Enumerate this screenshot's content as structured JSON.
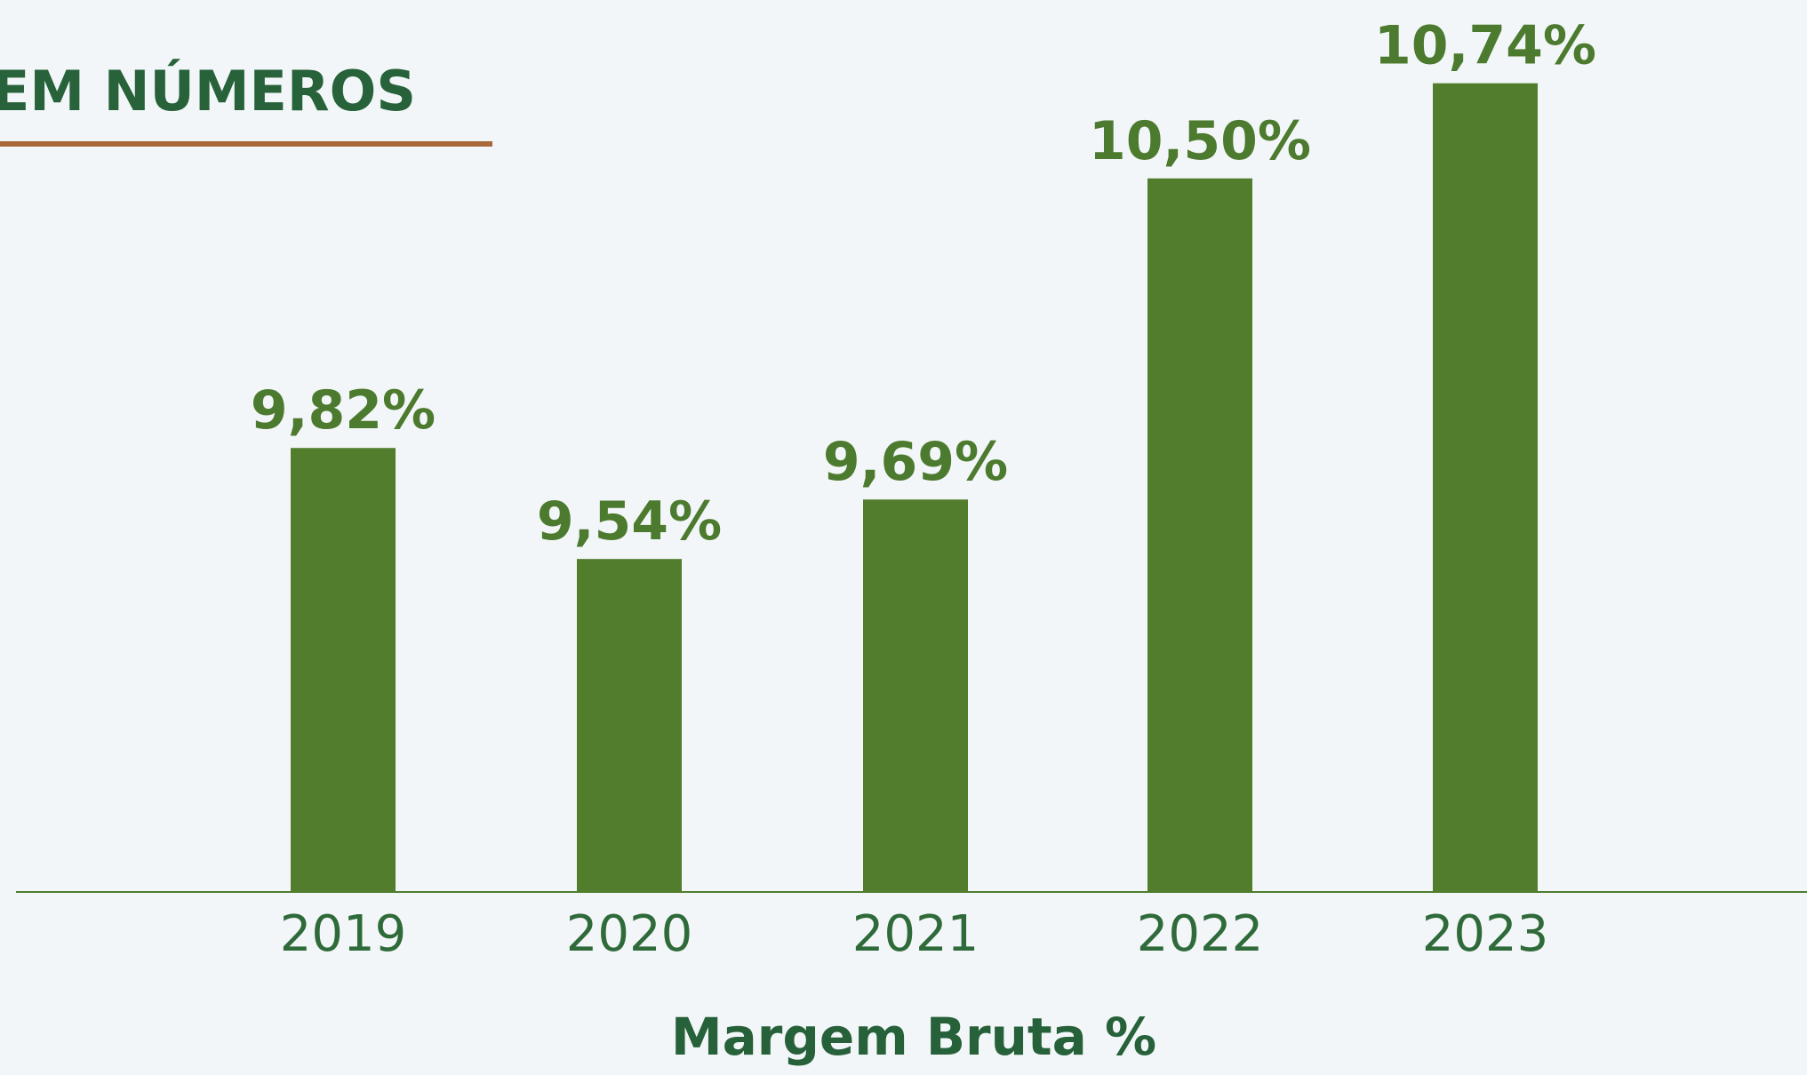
{
  "chart_data": {
    "type": "bar",
    "title": "EM NÚMEROS",
    "x_label": "Margem Bruta %",
    "categories": [
      "2019",
      "2020",
      "2021",
      "2022",
      "2023"
    ],
    "values": [
      9.82,
      9.54,
      9.69,
      10.5,
      10.74
    ],
    "value_labels": [
      "9,82%",
      "9,54%",
      "9,69%",
      "10,50%",
      "10,74%"
    ],
    "color": "#527d2d",
    "ylim": [
      8.7,
      10.95
    ]
  }
}
